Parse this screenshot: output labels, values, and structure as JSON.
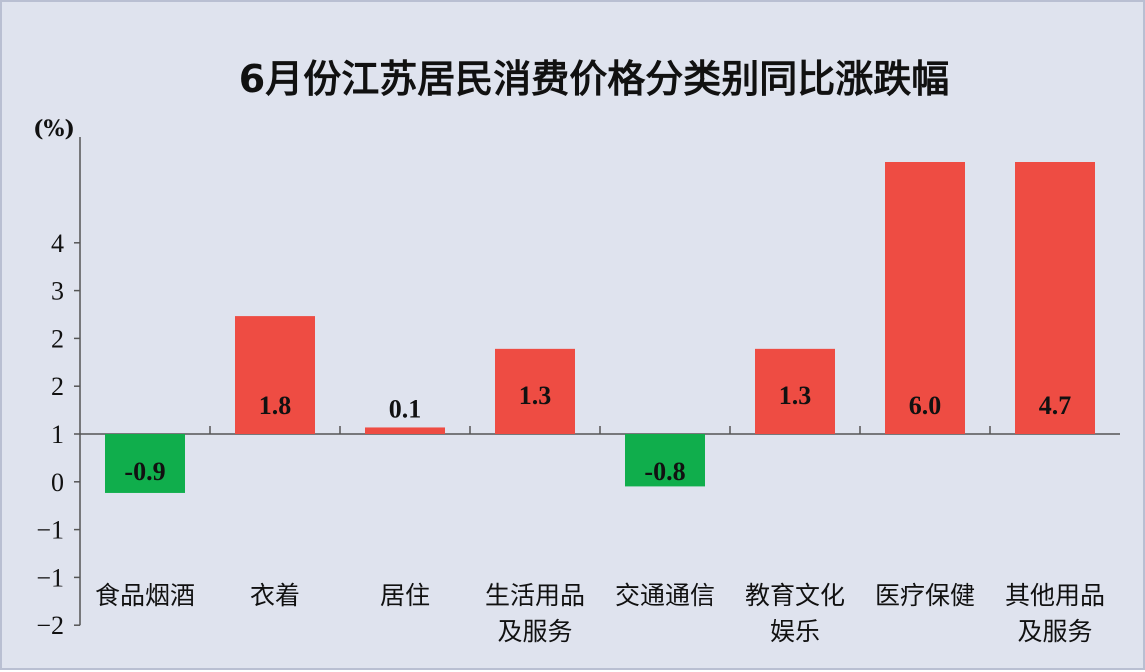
{
  "chart_data": {
    "type": "bar",
    "title": "6月份江苏居民消费价格分类别同比涨跌幅",
    "ylabel": "(%)",
    "categories": [
      [
        "食品烟酒"
      ],
      [
        "衣着"
      ],
      [
        "居住"
      ],
      [
        "生活用品",
        "及服务"
      ],
      [
        "交通通信"
      ],
      [
        "教育文化",
        "娱乐"
      ],
      [
        "医疗保健"
      ],
      [
        "其他用品",
        "及服务"
      ]
    ],
    "values": [
      -0.9,
      1.8,
      0.1,
      1.3,
      -0.8,
      1.3,
      6.0,
      4.7
    ],
    "y_tick_labels": [
      "4",
      "3",
      "2",
      "2",
      "1",
      "0",
      "−1",
      "−1",
      "−2"
    ],
    "colors": {
      "positive": "#ee4c43",
      "negative": "#10ae4c",
      "background": "#dfe3ee",
      "axis": "#555555"
    },
    "grid": false
  }
}
